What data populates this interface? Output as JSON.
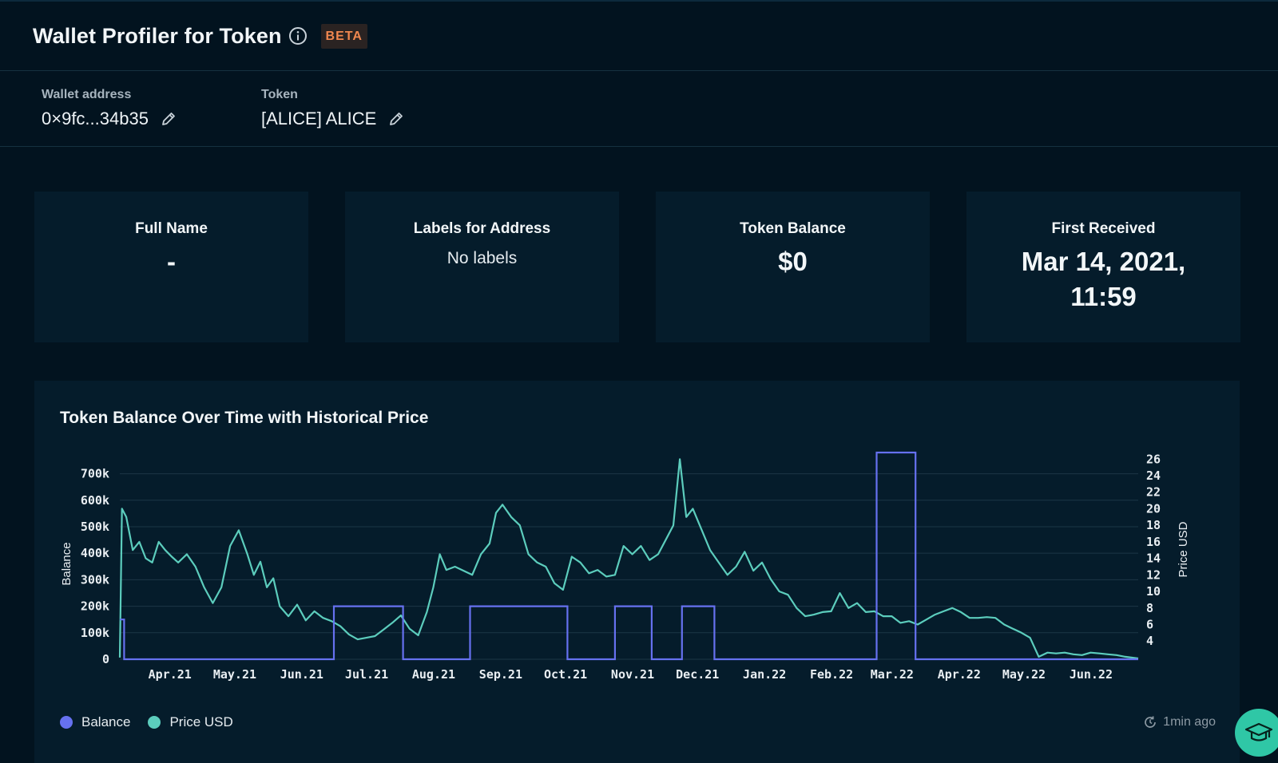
{
  "header": {
    "title": "Wallet Profiler for Token",
    "badge": "BETA",
    "info_icon": "info-icon"
  },
  "params": {
    "wallet": {
      "label": "Wallet address",
      "value": "0×9fc...34b35",
      "icon": "pencil-icon"
    },
    "token": {
      "label": "Token",
      "value": "[ALICE] ALICE",
      "icon": "pencil-icon"
    }
  },
  "cards": [
    {
      "title": "Full Name",
      "value": "-"
    },
    {
      "title": "Labels for Address",
      "value": "No labels"
    },
    {
      "title": "Token Balance",
      "value": "$0"
    },
    {
      "title": "First Received",
      "value_line1": "Mar 14, 2021,",
      "value_line2": "11:59"
    }
  ],
  "chart_panel": {
    "title": "Token Balance Over Time with Historical Price",
    "updated": "1min ago",
    "updated_icon": "refresh-clock-icon"
  },
  "colors": {
    "balance": "#6671f0",
    "price": "#5ccdbd",
    "background": "#02131f",
    "panel": "#051c2b",
    "badge_text": "#f0874f"
  },
  "chart_data": {
    "type": "line",
    "title": "Token Balance Over Time with Historical Price",
    "ylabel": "Balance",
    "y2label": "Price USD",
    "ylim": [
      0,
      780000
    ],
    "y2lim": [
      1.8,
      26.8
    ],
    "y_ticks": [
      "0",
      "100k",
      "200k",
      "300k",
      "400k",
      "500k",
      "600k",
      "700k"
    ],
    "y_tick_values": [
      0,
      100000,
      200000,
      300000,
      400000,
      500000,
      600000,
      700000
    ],
    "y2_ticks": [
      "4",
      "6",
      "8",
      "10",
      "12",
      "14",
      "16",
      "18",
      "20",
      "22",
      "24",
      "26"
    ],
    "y2_tick_values": [
      4,
      6,
      8,
      10,
      12,
      14,
      16,
      18,
      20,
      22,
      24,
      26
    ],
    "x_ticks": [
      "Apr.21",
      "May.21",
      "Jun.21",
      "Jul.21",
      "Aug.21",
      "Sep.21",
      "Oct.21",
      "Nov.21",
      "Dec.21",
      "Jan.22",
      "Feb.22",
      "Mar.22",
      "Apr.22",
      "May.22",
      "Jun.22"
    ],
    "x_tick_dates": [
      "2021-04-01",
      "2021-05-01",
      "2021-06-01",
      "2021-07-01",
      "2021-08-01",
      "2021-09-01",
      "2021-10-01",
      "2021-11-01",
      "2021-12-01",
      "2022-01-01",
      "2022-02-01",
      "2022-03-01",
      "2022-04-01",
      "2022-05-01",
      "2022-06-01"
    ],
    "xlim": [
      "2021-03-14",
      "2022-06-28"
    ],
    "grid": true,
    "legend_position": "bottom-left",
    "series": [
      {
        "name": "Balance",
        "axis": "left",
        "step": true,
        "x": [
          "2021-03-14",
          "2021-03-16",
          "2021-03-17",
          "2021-06-21",
          "2021-07-23",
          "2021-08-23",
          "2021-10-07",
          "2021-10-29",
          "2021-11-15",
          "2021-11-29",
          "2021-12-14",
          "2022-02-27",
          "2022-03-17",
          "2022-06-28"
        ],
        "values": [
          150000,
          0,
          0,
          200000,
          0,
          200000,
          0,
          200000,
          0,
          200000,
          0,
          780000,
          0,
          0
        ]
      },
      {
        "name": "Price USD",
        "axis": "right",
        "x": [
          "2021-03-14",
          "2021-03-15",
          "2021-03-17",
          "2021-03-20",
          "2021-03-23",
          "2021-03-26",
          "2021-03-29",
          "2021-04-01",
          "2021-04-04",
          "2021-04-07",
          "2021-04-10",
          "2021-04-14",
          "2021-04-18",
          "2021-04-22",
          "2021-04-26",
          "2021-04-30",
          "2021-05-04",
          "2021-05-08",
          "2021-05-12",
          "2021-05-15",
          "2021-05-18",
          "2021-05-21",
          "2021-05-24",
          "2021-05-27",
          "2021-05-31",
          "2021-06-04",
          "2021-06-08",
          "2021-06-12",
          "2021-06-16",
          "2021-06-20",
          "2021-06-24",
          "2021-06-28",
          "2021-07-02",
          "2021-07-06",
          "2021-07-10",
          "2021-07-14",
          "2021-07-18",
          "2021-07-22",
          "2021-07-26",
          "2021-07-30",
          "2021-08-03",
          "2021-08-06",
          "2021-08-09",
          "2021-08-12",
          "2021-08-16",
          "2021-08-20",
          "2021-08-24",
          "2021-08-28",
          "2021-09-01",
          "2021-09-04",
          "2021-09-07",
          "2021-09-11",
          "2021-09-15",
          "2021-09-19",
          "2021-09-23",
          "2021-09-27",
          "2021-10-01",
          "2021-10-05",
          "2021-10-09",
          "2021-10-13",
          "2021-10-17",
          "2021-10-21",
          "2021-10-25",
          "2021-10-29",
          "2021-11-02",
          "2021-11-06",
          "2021-11-10",
          "2021-11-14",
          "2021-11-18",
          "2021-11-22",
          "2021-11-25",
          "2021-11-28",
          "2021-12-01",
          "2021-12-04",
          "2021-12-08",
          "2021-12-12",
          "2021-12-16",
          "2021-12-20",
          "2021-12-24",
          "2021-12-28",
          "2022-01-01",
          "2022-01-05",
          "2022-01-09",
          "2022-01-13",
          "2022-01-17",
          "2022-01-21",
          "2022-01-25",
          "2022-01-29",
          "2022-02-02",
          "2022-02-06",
          "2022-02-10",
          "2022-02-14",
          "2022-02-18",
          "2022-02-22",
          "2022-02-26",
          "2022-03-02",
          "2022-03-06",
          "2022-03-10",
          "2022-03-14",
          "2022-03-18",
          "2022-03-22",
          "2022-03-26",
          "2022-03-30",
          "2022-04-03",
          "2022-04-07",
          "2022-04-11",
          "2022-04-15",
          "2022-04-19",
          "2022-04-23",
          "2022-04-27",
          "2022-05-01",
          "2022-05-05",
          "2022-05-09",
          "2022-05-13",
          "2022-05-17",
          "2022-05-21",
          "2022-05-25",
          "2022-05-29",
          "2022-06-02",
          "2022-06-06",
          "2022-06-10",
          "2022-06-14",
          "2022-06-18",
          "2022-06-22",
          "2022-06-28"
        ],
        "values": [
          2.0,
          20.0,
          19.0,
          15.0,
          16.0,
          14.0,
          13.5,
          16.0,
          15.0,
          14.2,
          13.5,
          14.5,
          13.0,
          10.5,
          8.6,
          10.5,
          15.5,
          17.4,
          14.5,
          12.0,
          13.6,
          10.5,
          11.6,
          8.2,
          7.0,
          8.4,
          6.5,
          7.6,
          6.8,
          6.4,
          5.8,
          4.8,
          4.2,
          4.4,
          4.6,
          5.4,
          6.2,
          7.1,
          5.5,
          4.7,
          7.5,
          10.5,
          14.5,
          12.6,
          13.0,
          12.5,
          12.0,
          14.5,
          15.8,
          19.5,
          20.5,
          19.0,
          18.0,
          14.5,
          13.5,
          13.0,
          11.0,
          10.2,
          14.2,
          13.5,
          12.2,
          12.6,
          11.8,
          12.0,
          15.5,
          14.5,
          15.5,
          13.8,
          14.5,
          16.5,
          18.0,
          26.0,
          19.0,
          20.0,
          17.5,
          15.0,
          13.5,
          12.0,
          13.0,
          14.8,
          12.5,
          13.5,
          11.5,
          10.0,
          9.6,
          8.0,
          7.0,
          7.2,
          7.5,
          7.6,
          9.8,
          8.0,
          8.6,
          7.5,
          7.6,
          7.0,
          7.0,
          6.2,
          6.4,
          6.0,
          6.6,
          7.2,
          7.6,
          8.0,
          7.5,
          6.8,
          6.8,
          6.9,
          6.8,
          6.0,
          5.5,
          5.0,
          4.4,
          2.1,
          2.6,
          2.5,
          2.6,
          2.4,
          2.3,
          2.6,
          2.5,
          2.4,
          2.3,
          2.1,
          1.9
        ]
      }
    ]
  }
}
